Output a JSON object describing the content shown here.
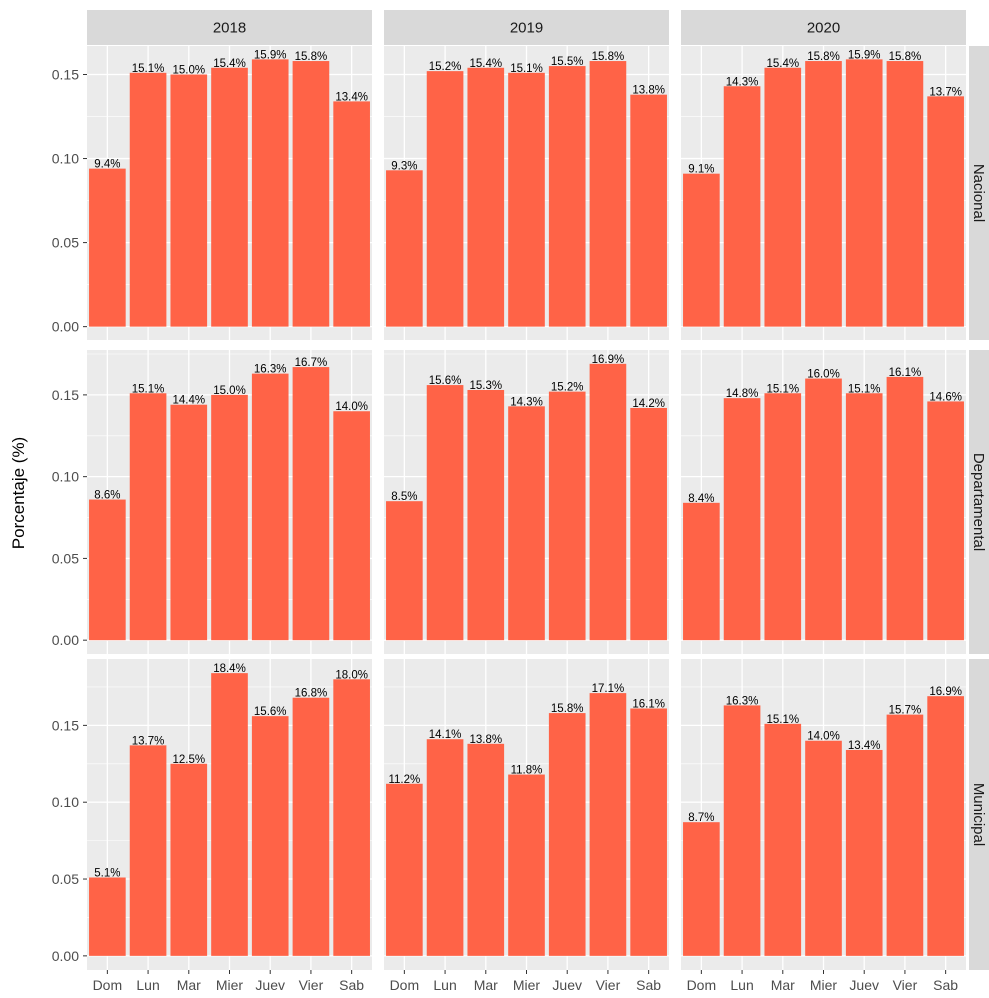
{
  "chart_data": {
    "type": "bar",
    "ylabel": "Porcentaje (%)",
    "xlabel": "",
    "categories": [
      "Dom",
      "Lun",
      "Mar",
      "Mier",
      "Juev",
      "Vier",
      "Sab"
    ],
    "column_facets": [
      "2018",
      "2019",
      "2020"
    ],
    "row_facets": [
      "Nacional",
      "Departamental",
      "Municipal"
    ],
    "y_ticks": {
      "Nacional": [
        "0.00",
        "0.05",
        "0.10",
        "0.15"
      ],
      "Departamental": [
        "0.00",
        "0.05",
        "0.10",
        "0.15"
      ],
      "Municipal": [
        "0.00",
        "0.05",
        "0.10",
        "0.15"
      ]
    },
    "ylim": {
      "Nacional": [
        -0.00795,
        0.16695
      ],
      "Departamental": [
        -0.00845,
        0.17745
      ],
      "Municipal": [
        -0.0092,
        0.1932
      ]
    },
    "bar_color": "#ff6347",
    "panel_background": "#ebebeb",
    "strip_background": "#d9d9d9",
    "grid": true,
    "legend": "none",
    "series": [
      {
        "row": "Nacional",
        "col": "2018",
        "values": [
          0.094,
          0.151,
          0.15,
          0.154,
          0.159,
          0.158,
          0.134
        ],
        "labels": [
          "9.4%",
          "15.1%",
          "15.0%",
          "15.4%",
          "15.9%",
          "15.8%",
          "13.4%"
        ]
      },
      {
        "row": "Nacional",
        "col": "2019",
        "values": [
          0.093,
          0.152,
          0.154,
          0.151,
          0.155,
          0.158,
          0.138
        ],
        "labels": [
          "9.3%",
          "15.2%",
          "15.4%",
          "15.1%",
          "15.5%",
          "15.8%",
          "13.8%"
        ]
      },
      {
        "row": "Nacional",
        "col": "2020",
        "values": [
          0.091,
          0.143,
          0.154,
          0.158,
          0.159,
          0.158,
          0.137
        ],
        "labels": [
          "9.1%",
          "14.3%",
          "15.4%",
          "15.8%",
          "15.9%",
          "15.8%",
          "13.7%"
        ]
      },
      {
        "row": "Departamental",
        "col": "2018",
        "values": [
          0.086,
          0.151,
          0.144,
          0.15,
          0.163,
          0.167,
          0.14
        ],
        "labels": [
          "8.6%",
          "15.1%",
          "14.4%",
          "15.0%",
          "16.3%",
          "16.7%",
          "14.0%"
        ]
      },
      {
        "row": "Departamental",
        "col": "2019",
        "values": [
          0.085,
          0.156,
          0.153,
          0.143,
          0.152,
          0.169,
          0.142
        ],
        "labels": [
          "8.5%",
          "15.6%",
          "15.3%",
          "14.3%",
          "15.2%",
          "16.9%",
          "14.2%"
        ]
      },
      {
        "row": "Departamental",
        "col": "2020",
        "values": [
          0.084,
          0.148,
          0.151,
          0.16,
          0.151,
          0.161,
          0.146
        ],
        "labels": [
          "8.4%",
          "14.8%",
          "15.1%",
          "16.0%",
          "15.1%",
          "16.1%",
          "14.6%"
        ]
      },
      {
        "row": "Municipal",
        "col": "2018",
        "values": [
          0.051,
          0.137,
          0.125,
          0.184,
          0.156,
          0.168,
          0.18
        ],
        "labels": [
          "5.1%",
          "13.7%",
          "12.5%",
          "18.4%",
          "15.6%",
          "16.8%",
          "18.0%"
        ]
      },
      {
        "row": "Municipal",
        "col": "2019",
        "values": [
          0.112,
          0.141,
          0.138,
          0.118,
          0.158,
          0.171,
          0.161
        ],
        "labels": [
          "11.2%",
          "14.1%",
          "13.8%",
          "11.8%",
          "15.8%",
          "17.1%",
          "16.1%"
        ]
      },
      {
        "row": "Municipal",
        "col": "2020",
        "values": [
          0.087,
          0.163,
          0.151,
          0.14,
          0.134,
          0.157,
          0.169
        ],
        "labels": [
          "8.7%",
          "16.3%",
          "15.1%",
          "14.0%",
          "13.4%",
          "15.7%",
          "16.9%"
        ]
      }
    ]
  }
}
